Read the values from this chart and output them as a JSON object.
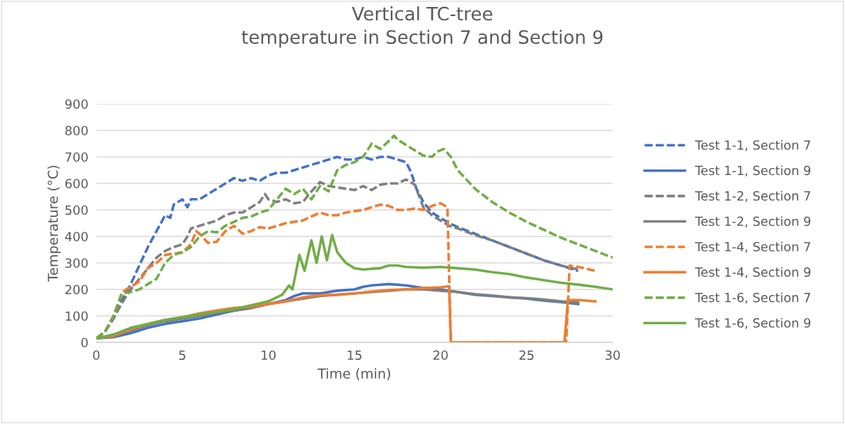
{
  "chart_data": {
    "type": "line",
    "title": "Vertical TC-tree\ntemperature in Section 7 and Section 9",
    "xlabel": "Time (min)",
    "ylabel": "Temperature (°C)",
    "xlim": [
      0,
      30
    ],
    "xticks": [
      0,
      5,
      10,
      15,
      20,
      25,
      30
    ],
    "ylim": [
      0,
      900
    ],
    "yticks": [
      0,
      100,
      200,
      300,
      400,
      500,
      600,
      700,
      800,
      900
    ],
    "grid": "y",
    "legend": "right",
    "series": [
      {
        "name": "Test 1-1, Section 7",
        "color": "#4472c4",
        "line_style": "dashed",
        "x": [
          0,
          0.5,
          1,
          1.5,
          2,
          2.5,
          3,
          3.5,
          4,
          4.3,
          4.5,
          5,
          5.3,
          5.5,
          6,
          6.5,
          7,
          7.5,
          8,
          8.5,
          9,
          9.5,
          10,
          10.5,
          11,
          11.5,
          12,
          12.5,
          13,
          13.5,
          14,
          14.5,
          15,
          15.5,
          16,
          16.5,
          17,
          17.5,
          18,
          18.3,
          18.6,
          19,
          19.5,
          20,
          20.5,
          21,
          22,
          23,
          24,
          25,
          26,
          27,
          28
        ],
        "values": [
          15,
          40,
          90,
          160,
          220,
          290,
          360,
          420,
          480,
          470,
          520,
          540,
          510,
          540,
          540,
          560,
          580,
          600,
          620,
          610,
          620,
          610,
          630,
          640,
          640,
          650,
          660,
          670,
          680,
          690,
          700,
          690,
          690,
          700,
          690,
          700,
          700,
          690,
          680,
          640,
          580,
          530,
          490,
          470,
          450,
          435,
          410,
          385,
          360,
          335,
          310,
          290,
          270
        ]
      },
      {
        "name": "Test 1-1, Section 9",
        "color": "#4472c4",
        "line_style": "solid",
        "x": [
          0,
          1,
          2,
          3,
          4,
          5,
          6,
          7,
          8,
          9,
          10,
          11,
          11.5,
          12,
          13,
          14,
          15,
          15.5,
          16,
          17,
          18,
          19,
          20,
          21,
          22,
          23,
          24,
          25,
          26,
          27,
          28
        ],
        "values": [
          15,
          20,
          35,
          55,
          70,
          80,
          90,
          105,
          120,
          130,
          145,
          160,
          175,
          185,
          185,
          195,
          200,
          210,
          215,
          220,
          215,
          205,
          200,
          190,
          180,
          175,
          170,
          165,
          158,
          152,
          145
        ]
      },
      {
        "name": "Test 1-2, Section 7",
        "color": "#7f7f7f",
        "line_style": "dashed",
        "x": [
          0,
          0.5,
          1,
          1.5,
          2,
          2.5,
          3,
          3.5,
          4,
          4.5,
          5,
          5.3,
          5.5,
          6,
          6.5,
          7,
          7.5,
          8,
          8.5,
          9,
          9.5,
          9.8,
          10,
          10.5,
          11,
          11.5,
          12,
          12.5,
          13,
          13.5,
          14,
          14.5,
          15,
          15.5,
          16,
          16.5,
          17,
          17.5,
          18,
          18.5,
          19,
          19.5,
          20,
          20.5,
          21,
          22,
          23,
          24,
          25,
          26,
          27,
          28
        ],
        "values": [
          15,
          40,
          90,
          150,
          200,
          240,
          280,
          320,
          345,
          360,
          370,
          400,
          430,
          440,
          450,
          460,
          480,
          490,
          490,
          510,
          530,
          560,
          540,
          530,
          540,
          525,
          530,
          570,
          605,
          590,
          585,
          580,
          575,
          590,
          575,
          595,
          600,
          600,
          615,
          595,
          510,
          480,
          460,
          440,
          430,
          405,
          385,
          360,
          335,
          310,
          290,
          275
        ]
      },
      {
        "name": "Test 1-2, Section 9",
        "color": "#7f7f7f",
        "line_style": "solid",
        "x": [
          0,
          1,
          2,
          3,
          4,
          5,
          6,
          7,
          8,
          9,
          10,
          11,
          12,
          13,
          14,
          15,
          16,
          17,
          18,
          19,
          20,
          21,
          22,
          23,
          24,
          25,
          26,
          27,
          28
        ],
        "values": [
          15,
          22,
          45,
          65,
          80,
          90,
          100,
          112,
          120,
          130,
          145,
          155,
          165,
          175,
          180,
          185,
          190,
          195,
          200,
          200,
          195,
          190,
          182,
          177,
          170,
          167,
          162,
          155,
          150
        ]
      },
      {
        "name": "Test 1-4, Section 7",
        "color": "#ed7d31",
        "line_style": "dashed",
        "x": [
          0,
          0.5,
          1,
          1.5,
          2,
          2.5,
          3,
          3.5,
          4,
          4.5,
          5,
          5.5,
          5.8,
          6,
          6.5,
          7,
          7.5,
          8,
          8.5,
          9,
          9.5,
          10,
          10.5,
          11,
          11.5,
          12,
          12.5,
          13,
          13.5,
          14,
          14.5,
          15,
          15.5,
          16,
          16.5,
          17,
          17.5,
          18,
          18.5,
          19,
          19.5,
          20,
          20.4,
          20.6,
          27.3,
          27.5,
          28,
          29
        ],
        "values": [
          15,
          40,
          100,
          190,
          210,
          230,
          280,
          300,
          330,
          335,
          340,
          370,
          420,
          410,
          375,
          380,
          420,
          440,
          410,
          420,
          435,
          430,
          440,
          450,
          455,
          460,
          475,
          490,
          480,
          480,
          490,
          495,
          500,
          510,
          520,
          515,
          500,
          500,
          505,
          500,
          515,
          525,
          510,
          0,
          0,
          290,
          285,
          270
        ]
      },
      {
        "name": "Test 1-4, Section 9",
        "color": "#ed7d31",
        "line_style": "solid",
        "x": [
          0,
          1,
          2,
          3,
          4,
          5,
          6,
          7,
          8,
          9,
          10,
          11,
          12,
          13,
          14,
          15,
          16,
          17,
          18,
          19,
          20,
          20.5,
          20.6,
          27.2,
          27.4,
          28,
          29
        ],
        "values": [
          15,
          25,
          50,
          70,
          85,
          95,
          110,
          120,
          130,
          135,
          145,
          155,
          170,
          178,
          180,
          185,
          192,
          198,
          200,
          205,
          208,
          212,
          0,
          0,
          160,
          160,
          155
        ]
      },
      {
        "name": "Test 1-6, Section 7",
        "color": "#70ad47",
        "line_style": "dashed",
        "x": [
          0,
          0.5,
          1,
          1.5,
          2,
          2.5,
          3,
          3.5,
          4,
          4.5,
          5,
          5.5,
          6,
          6.5,
          7,
          7.5,
          8,
          8.5,
          9,
          9.5,
          10,
          10.5,
          11,
          11.5,
          12,
          12.5,
          13,
          13.5,
          14,
          14.5,
          15,
          15.5,
          16,
          16.5,
          17,
          17.3,
          17.5,
          18,
          18.5,
          19,
          19.5,
          19.8,
          20.2,
          20.6,
          21,
          22,
          23,
          24,
          25,
          26,
          27,
          28,
          29,
          30
        ],
        "values": [
          15,
          40,
          100,
          185,
          190,
          200,
          220,
          240,
          300,
          330,
          340,
          360,
          400,
          420,
          415,
          440,
          455,
          470,
          475,
          490,
          500,
          540,
          580,
          560,
          580,
          540,
          590,
          570,
          650,
          670,
          680,
          700,
          750,
          730,
          760,
          780,
          765,
          745,
          725,
          705,
          700,
          720,
          730,
          700,
          650,
          580,
          530,
          490,
          455,
          425,
          395,
          370,
          345,
          320
        ]
      },
      {
        "name": "Test 1-6, Section 9",
        "color": "#70ad47",
        "line_style": "solid",
        "x": [
          0,
          1,
          2,
          3,
          4,
          5,
          6,
          7,
          8,
          9,
          10,
          10.8,
          11.2,
          11.4,
          11.8,
          12.1,
          12.5,
          12.8,
          13.1,
          13.4,
          13.7,
          14,
          14.5,
          15,
          15.5,
          16,
          16.5,
          17,
          17.5,
          18,
          19,
          20,
          21,
          22,
          23,
          24,
          25,
          26,
          27,
          28,
          29,
          30
        ],
        "values": [
          15,
          30,
          55,
          70,
          85,
          95,
          105,
          115,
          125,
          140,
          155,
          180,
          215,
          200,
          330,
          270,
          385,
          300,
          400,
          310,
          405,
          340,
          300,
          280,
          275,
          278,
          280,
          290,
          290,
          285,
          282,
          285,
          280,
          275,
          265,
          258,
          245,
          235,
          225,
          218,
          210,
          200
        ]
      }
    ]
  }
}
